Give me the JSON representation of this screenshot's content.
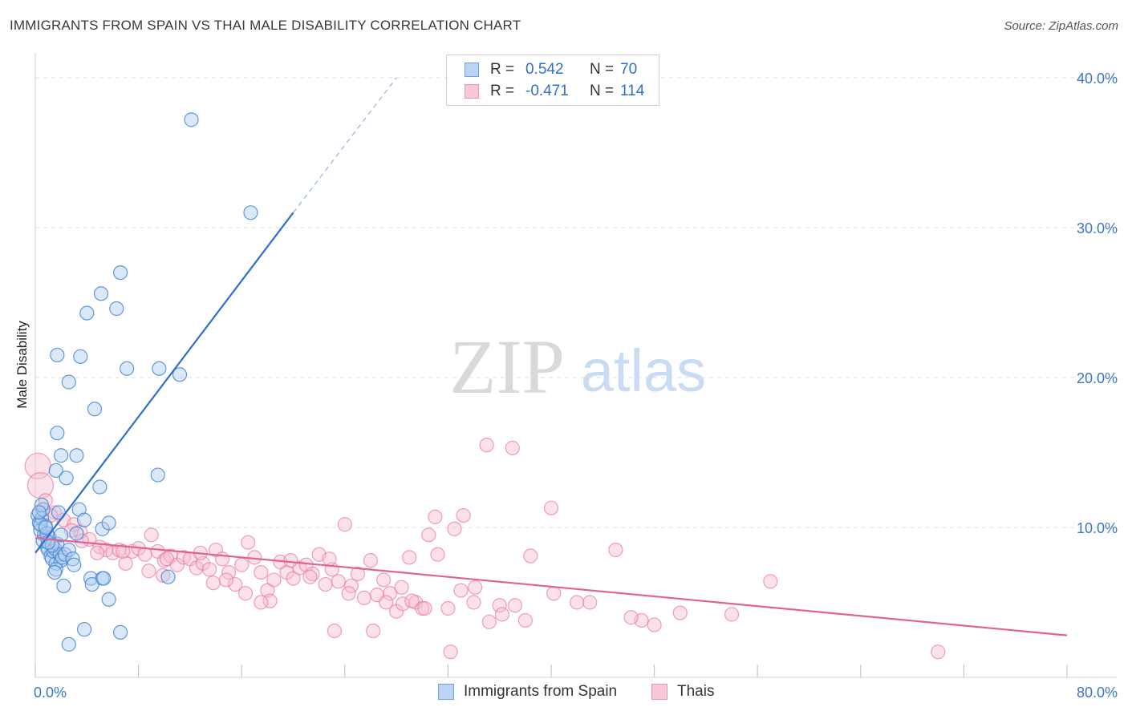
{
  "title": "IMMIGRANTS FROM SPAIN VS THAI MALE DISABILITY CORRELATION CHART",
  "source": "Source: ZipAtlas.com",
  "watermark": {
    "zip": "ZIP",
    "atlas": "atlas"
  },
  "legend": {
    "rows": [
      {
        "name": "Immigrants from Spain",
        "r_label": "R =",
        "r_value": "0.542",
        "n_label": "N =",
        "n_value": "70"
      },
      {
        "name": "Thais",
        "r_label": "R =",
        "r_value": "-0.471",
        "n_label": "N =",
        "n_value": "114"
      }
    ]
  },
  "colors": {
    "blue_fill": "#aecbf0",
    "blue_stroke": "#4a86d4",
    "blue_line": "#2f6fcb",
    "pink_fill": "#f6bcd0",
    "pink_stroke": "#e8789f",
    "pink_line": "#e0628d",
    "axis_text": "#3d76c7",
    "grid": "#dddddd"
  },
  "chart_data": {
    "type": "scatter",
    "title": "IMMIGRANTS FROM SPAIN VS THAI MALE DISABILITY CORRELATION CHART",
    "xlabel": "",
    "ylabel": "Male Disability",
    "xlim": [
      0,
      80
    ],
    "ylim": [
      0,
      40
    ],
    "x_tick_labels": [
      "0.0%",
      "80.0%"
    ],
    "y_ticks": [
      10,
      20,
      30,
      40
    ],
    "y_tick_labels": [
      "10.0%",
      "20.0%",
      "30.0%",
      "40.0%"
    ],
    "series": [
      {
        "name": "Immigrants from Spain",
        "R": 0.542,
        "N": 70,
        "trend": {
          "x": [
            0.0,
            20.0
          ],
          "y": [
            8.3,
            31.0
          ],
          "dashed_to": {
            "x": 28.0,
            "y": 40.0
          }
        },
        "points": [
          [
            0.2,
            10.8
          ],
          [
            0.3,
            10.3
          ],
          [
            0.4,
            9.8
          ],
          [
            0.5,
            10.6
          ],
          [
            0.6,
            11.2
          ],
          [
            0.7,
            9.5
          ],
          [
            0.8,
            10.1
          ],
          [
            0.9,
            8.7
          ],
          [
            1.0,
            8.5
          ],
          [
            1.1,
            9.3
          ],
          [
            1.2,
            8.1
          ],
          [
            1.3,
            7.9
          ],
          [
            1.4,
            8.4
          ],
          [
            1.5,
            8.6
          ],
          [
            1.6,
            7.6
          ],
          [
            1.7,
            8.9
          ],
          [
            1.8,
            11.0
          ],
          [
            1.9,
            8.2
          ],
          [
            2.0,
            7.8
          ],
          [
            2.1,
            8.0
          ],
          [
            0.4,
            10.2
          ],
          [
            0.6,
            9.1
          ],
          [
            0.9,
            9.6
          ],
          [
            1.3,
            8.8
          ],
          [
            1.6,
            7.2
          ],
          [
            2.0,
            9.5
          ],
          [
            2.3,
            8.2
          ],
          [
            2.6,
            8.5
          ],
          [
            2.9,
            7.9
          ],
          [
            3.2,
            9.6
          ],
          [
            0.5,
            11.5
          ],
          [
            0.8,
            10.0
          ],
          [
            1.0,
            9.0
          ],
          [
            1.5,
            7.0
          ],
          [
            2.2,
            6.1
          ],
          [
            3.0,
            7.5
          ],
          [
            3.4,
            11.2
          ],
          [
            3.8,
            10.5
          ],
          [
            4.3,
            6.6
          ],
          [
            5.2,
            6.6
          ],
          [
            1.7,
            16.3
          ],
          [
            2.0,
            14.8
          ],
          [
            1.6,
            13.8
          ],
          [
            2.4,
            13.3
          ],
          [
            3.2,
            14.8
          ],
          [
            1.7,
            21.5
          ],
          [
            3.5,
            21.4
          ],
          [
            2.6,
            19.7
          ],
          [
            4.6,
            17.9
          ],
          [
            5.0,
            12.7
          ],
          [
            4.0,
            24.3
          ],
          [
            5.1,
            25.6
          ],
          [
            6.3,
            24.6
          ],
          [
            6.6,
            27.0
          ],
          [
            7.1,
            20.6
          ],
          [
            9.6,
            20.6
          ],
          [
            11.2,
            20.2
          ],
          [
            9.5,
            13.5
          ],
          [
            5.2,
            9.9
          ],
          [
            5.7,
            10.3
          ],
          [
            4.4,
            6.2
          ],
          [
            5.3,
            6.6
          ],
          [
            5.7,
            5.2
          ],
          [
            6.6,
            3.0
          ],
          [
            3.8,
            3.2
          ],
          [
            2.6,
            2.2
          ],
          [
            10.3,
            6.7
          ],
          [
            12.1,
            37.2
          ],
          [
            16.7,
            31.0
          ],
          [
            0.3,
            11.0
          ]
        ]
      },
      {
        "name": "Thais",
        "R": -0.471,
        "N": 114,
        "trend": {
          "x": [
            0.0,
            80.0
          ],
          "y": [
            9.3,
            2.8
          ]
        },
        "points": [
          [
            0.2,
            14.1
          ],
          [
            0.4,
            12.8
          ],
          [
            0.8,
            11.8
          ],
          [
            1.5,
            11.0
          ],
          [
            2.2,
            10.5
          ],
          [
            3.0,
            10.2
          ],
          [
            3.5,
            9.7
          ],
          [
            4.2,
            9.2
          ],
          [
            5.0,
            8.7
          ],
          [
            5.5,
            8.5
          ],
          [
            6.0,
            8.3
          ],
          [
            6.5,
            8.5
          ],
          [
            7.0,
            7.6
          ],
          [
            7.5,
            8.4
          ],
          [
            8.0,
            8.6
          ],
          [
            8.5,
            8.2
          ],
          [
            9.0,
            9.5
          ],
          [
            9.5,
            8.4
          ],
          [
            10.0,
            7.8
          ],
          [
            10.5,
            8.1
          ],
          [
            11.0,
            7.5
          ],
          [
            11.5,
            8.0
          ],
          [
            12.0,
            7.9
          ],
          [
            12.5,
            7.3
          ],
          [
            13.0,
            7.6
          ],
          [
            13.5,
            7.2
          ],
          [
            14.0,
            8.5
          ],
          [
            14.5,
            7.9
          ],
          [
            15.0,
            7.0
          ],
          [
            15.5,
            6.2
          ],
          [
            16.0,
            7.5
          ],
          [
            16.5,
            9.0
          ],
          [
            17.0,
            8.0
          ],
          [
            17.5,
            7.0
          ],
          [
            18.0,
            5.8
          ],
          [
            18.5,
            6.5
          ],
          [
            19.0,
            7.7
          ],
          [
            19.5,
            7.0
          ],
          [
            20.0,
            6.6
          ],
          [
            20.5,
            7.3
          ],
          [
            21.0,
            7.5
          ],
          [
            21.5,
            6.9
          ],
          [
            22.0,
            8.2
          ],
          [
            22.5,
            6.2
          ],
          [
            23.0,
            7.2
          ],
          [
            23.5,
            6.4
          ],
          [
            24.0,
            10.2
          ],
          [
            24.5,
            6.1
          ],
          [
            25.0,
            6.9
          ],
          [
            25.5,
            5.3
          ],
          [
            26.0,
            7.8
          ],
          [
            26.5,
            5.5
          ],
          [
            27.0,
            6.5
          ],
          [
            27.5,
            5.6
          ],
          [
            28.0,
            4.4
          ],
          [
            28.5,
            4.9
          ],
          [
            29.0,
            8.0
          ],
          [
            29.5,
            5.0
          ],
          [
            30.0,
            4.6
          ],
          [
            30.5,
            9.5
          ],
          [
            31.0,
            10.7
          ],
          [
            32.0,
            4.6
          ],
          [
            33.0,
            5.8
          ],
          [
            34.0,
            5.0
          ],
          [
            35.0,
            15.5
          ],
          [
            36.0,
            4.8
          ],
          [
            37.0,
            15.3
          ],
          [
            38.0,
            3.8
          ],
          [
            40.0,
            11.3
          ],
          [
            42.0,
            5.0
          ],
          [
            45.0,
            8.5
          ],
          [
            47.0,
            3.8
          ],
          [
            48.0,
            3.5
          ],
          [
            50.0,
            4.3
          ],
          [
            54.0,
            4.2
          ],
          [
            57.0,
            6.4
          ],
          [
            70.0,
            1.7
          ],
          [
            0.6,
            11.2
          ],
          [
            1.2,
            10.8
          ],
          [
            2.8,
            9.8
          ],
          [
            3.6,
            9.1
          ],
          [
            4.8,
            8.3
          ],
          [
            6.8,
            8.4
          ],
          [
            8.8,
            7.1
          ],
          [
            10.2,
            7.9
          ],
          [
            12.8,
            8.3
          ],
          [
            14.8,
            6.5
          ],
          [
            16.3,
            5.6
          ],
          [
            18.2,
            5.1
          ],
          [
            19.8,
            7.8
          ],
          [
            21.3,
            6.7
          ],
          [
            22.8,
            7.9
          ],
          [
            24.3,
            5.6
          ],
          [
            26.2,
            3.1
          ],
          [
            27.2,
            5.0
          ],
          [
            28.4,
            6.0
          ],
          [
            29.2,
            5.1
          ],
          [
            30.2,
            4.6
          ],
          [
            31.2,
            8.2
          ],
          [
            32.5,
            9.9
          ],
          [
            33.2,
            10.8
          ],
          [
            34.1,
            6.0
          ],
          [
            35.2,
            3.7
          ],
          [
            36.2,
            4.2
          ],
          [
            37.2,
            4.8
          ],
          [
            38.4,
            8.1
          ],
          [
            40.2,
            5.6
          ],
          [
            43.0,
            5.0
          ],
          [
            46.2,
            4.0
          ],
          [
            32.2,
            1.7
          ],
          [
            17.5,
            5.0
          ],
          [
            23.2,
            3.1
          ],
          [
            13.8,
            6.3
          ],
          [
            9.9,
            6.8
          ]
        ]
      }
    ]
  }
}
